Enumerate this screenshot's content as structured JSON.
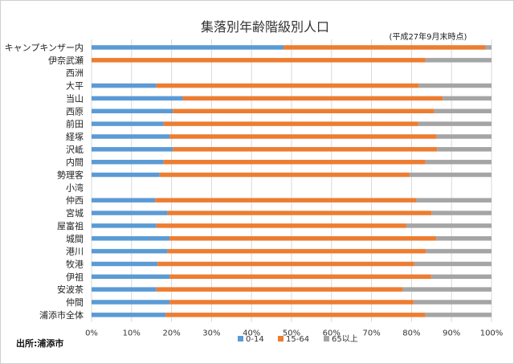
{
  "chart_data": {
    "type": "bar",
    "orientation": "horizontal",
    "stacked": "percent",
    "title": "集落別年齢階級別人口",
    "note": "(平成27年9月末時点)",
    "source": "出所:浦添市",
    "categories": [
      "キャンプキンザー内",
      "伊奈武瀬",
      "西洲",
      "大平",
      "当山",
      "西原",
      "前田",
      "経塚",
      "沢岻",
      "内間",
      "勢理客",
      "小湾",
      "仲西",
      "宮城",
      "屋富祖",
      "城間",
      "港川",
      "牧港",
      "伊祖",
      "安波茶",
      "仲間",
      "浦添市全体"
    ],
    "series": [
      {
        "name": "0-14",
        "color": "#5b9bd5",
        "values": [
          48.0,
          0,
          null,
          16.2,
          22.8,
          20.3,
          18.0,
          19.5,
          20.3,
          18.0,
          17.0,
          null,
          15.9,
          19.0,
          16.2,
          19.5,
          19.0,
          16.5,
          19.5,
          16.2,
          19.5,
          18.5
        ]
      },
      {
        "name": "15-64",
        "color": "#ed7d31",
        "values": [
          50.5,
          83.5,
          null,
          65.6,
          65.0,
          65.4,
          63.7,
          66.8,
          66.1,
          65.5,
          62.5,
          null,
          65.3,
          66.0,
          62.5,
          66.7,
          64.6,
          64.2,
          65.4,
          61.6,
          61.0,
          65.0
        ]
      },
      {
        "name": "65以上",
        "color": "#a5a5a5",
        "values": [
          1.5,
          16.5,
          null,
          18.2,
          12.2,
          14.3,
          18.3,
          13.7,
          13.6,
          16.5,
          20.5,
          null,
          18.8,
          15.0,
          21.3,
          13.8,
          16.4,
          19.3,
          15.1,
          22.2,
          19.5,
          16.5
        ]
      }
    ],
    "xlim": [
      0,
      100
    ],
    "xticks": [
      "0%",
      "10%",
      "20%",
      "30%",
      "40%",
      "50%",
      "60%",
      "70%",
      "80%",
      "90%",
      "100%"
    ],
    "grid": true,
    "legend_position": "bottom"
  }
}
